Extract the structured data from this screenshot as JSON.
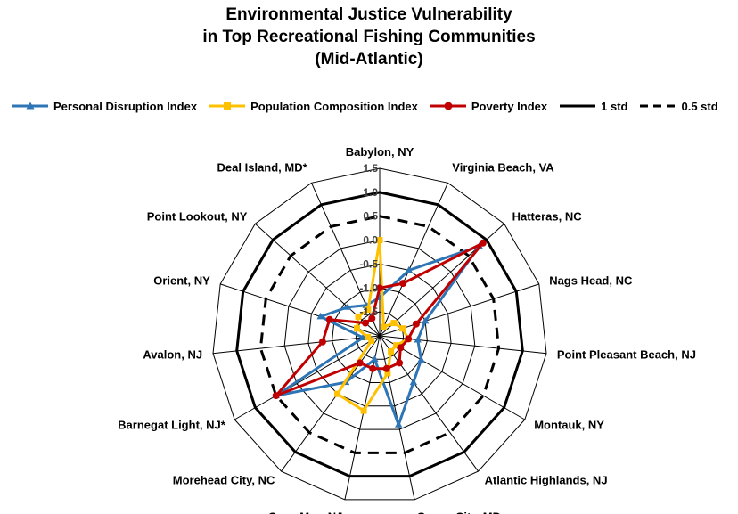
{
  "chart_data": {
    "type": "radar",
    "title_lines": [
      "Environmental Justice Vulnerability",
      "in Top Recreational Fishing Communities",
      "(Mid-Atlantic)"
    ],
    "categories": [
      "Babylon, NY",
      "Virginia Beach, VA",
      "Hatteras, NC",
      "Nags Head, NC",
      "Point Pleasant Beach, NJ",
      "Montauk, NY",
      "Atlantic Highlands, NJ",
      "Ocean City, MD",
      "Cape May, NJ",
      "Morehead City, NC",
      "Barnegat Light, NJ*",
      "Avalon, NJ",
      "Orient, NY",
      "Point Lookout, NY",
      "Deal Island, MD*"
    ],
    "rlim": [
      -2.0,
      1.5
    ],
    "ticks": [
      1.5,
      1.0,
      0.5,
      0.0,
      -0.5,
      -1.0,
      -1.5
    ],
    "tick_labels": [
      "1.5",
      "1.0",
      "0.5",
      "0.0",
      "-0.5",
      "-1.0",
      "-1.5"
    ],
    "grid": true,
    "legend_position": "top",
    "series": [
      {
        "name": "Personal Disruption Index",
        "color": "#2e75b6",
        "marker": "triangle",
        "values": [
          -1.2,
          -0.5,
          0.8,
          -1.0,
          -1.2,
          -1.0,
          -0.8,
          -0.1,
          -1.5,
          -0.8,
          0.5,
          -1.65,
          -0.7,
          -1.1,
          -1.3
        ]
      },
      {
        "name": "Population Composition Index",
        "color": "#ffc000",
        "marker": "square",
        "values": [
          0.0,
          -1.8,
          -1.6,
          -1.5,
          -1.4,
          -1.6,
          -1.6,
          -1.2,
          -0.4,
          -0.5,
          -1.8,
          -1.75,
          -1.5,
          -1.4,
          -1.4
        ]
      },
      {
        "name": "Poverty Index",
        "color": "#c00000",
        "marker": "circle",
        "values": [
          -1.0,
          -0.8,
          0.9,
          -1.2,
          -1.4,
          -1.5,
          -1.3,
          -1.3,
          -1.3,
          -1.3,
          0.5,
          -0.8,
          -0.9,
          -1.6,
          -1.6
        ]
      },
      {
        "name": "1 std",
        "color": "#000000",
        "marker": "none",
        "style": "solid",
        "constant": 1.0
      },
      {
        "name": "0.5 std",
        "color": "#000000",
        "marker": "none",
        "style": "dashed",
        "constant": 0.5
      }
    ]
  }
}
